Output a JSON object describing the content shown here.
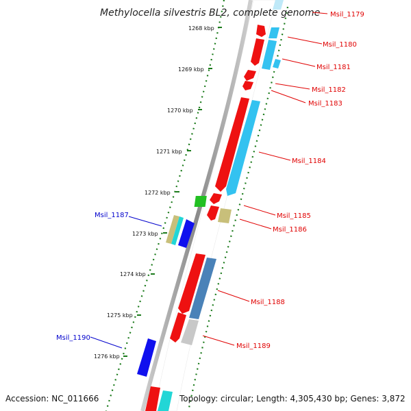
{
  "title": "Methylocella silvestris BL2, complete genome",
  "footer": {
    "accession": "Accession: NC_011666",
    "topology": "Topology: circular; Length: 4,305,430 bp; Genes: 3,872"
  },
  "ticks": [
    "1268 kbp",
    "1269 kbp",
    "1270 kbp",
    "1271 kbp",
    "1272 kbp",
    "1273 kbp",
    "1274 kbp",
    "1275 kbp",
    "1276 kbp"
  ],
  "gene_labels_right": [
    "Msil_1179",
    "Msil_1180",
    "Msil_1181",
    "Msil_1182",
    "Msil_1183",
    "Msil_1184",
    "Msil_1185",
    "Msil_1186",
    "Msil_1188",
    "Msil_1189"
  ],
  "gene_labels_left": [
    "Msil_1187",
    "Msil_1190"
  ],
  "colors": {
    "cds": "#ee1111",
    "gene_light_blue": "#33c2f0",
    "gene_steel_blue": "#4a82b8",
    "gene_green": "#22c022",
    "gene_khaki": "#c8bf7a",
    "gene_grey": "#c8c8c8",
    "gene_cyan": "#22d6d6",
    "gene_blue": "#1010ee",
    "left_label": "#0000cc",
    "right_label": "#e00000",
    "tick_green": "#1a7a1a"
  }
}
